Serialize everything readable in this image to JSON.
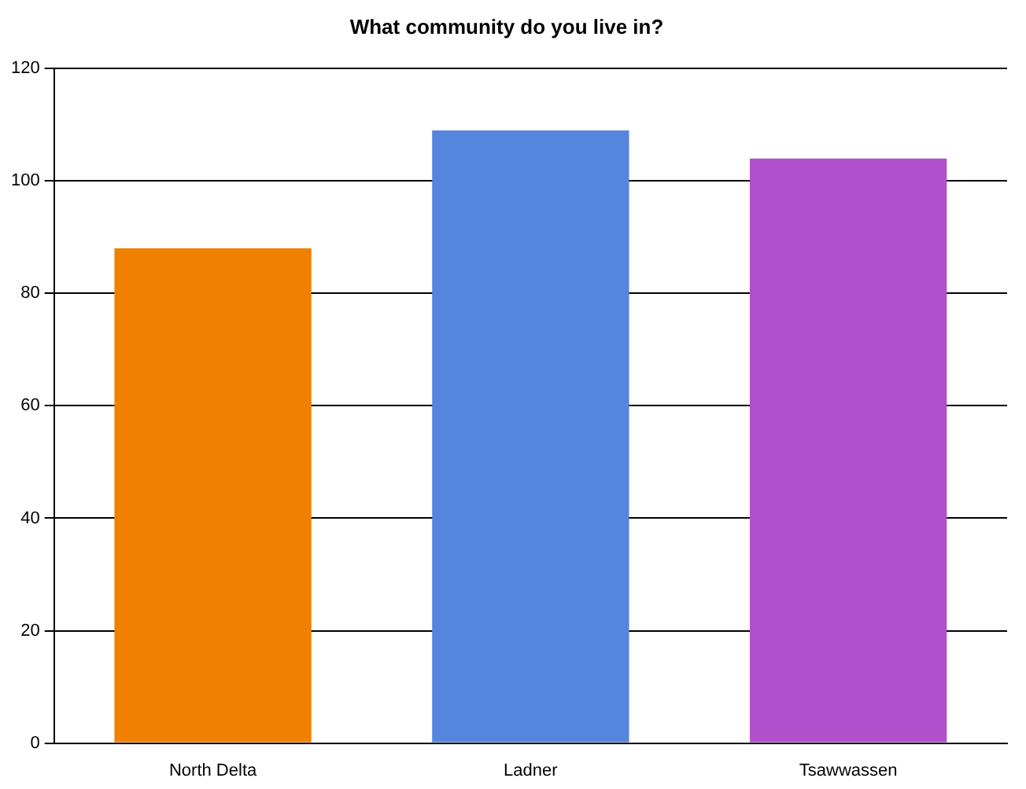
{
  "chart_data": {
    "type": "bar",
    "title": "What community do you live in?",
    "categories": [
      "North Delta",
      "Ladner",
      "Tsawwassen"
    ],
    "values": [
      88,
      109,
      104
    ],
    "colors": [
      "#f08000",
      "#5585dd",
      "#b04fcc"
    ],
    "ylim": [
      0,
      120
    ],
    "yticks": [
      0,
      20,
      40,
      60,
      80,
      100,
      120
    ],
    "grid": "y",
    "legend": false
  }
}
